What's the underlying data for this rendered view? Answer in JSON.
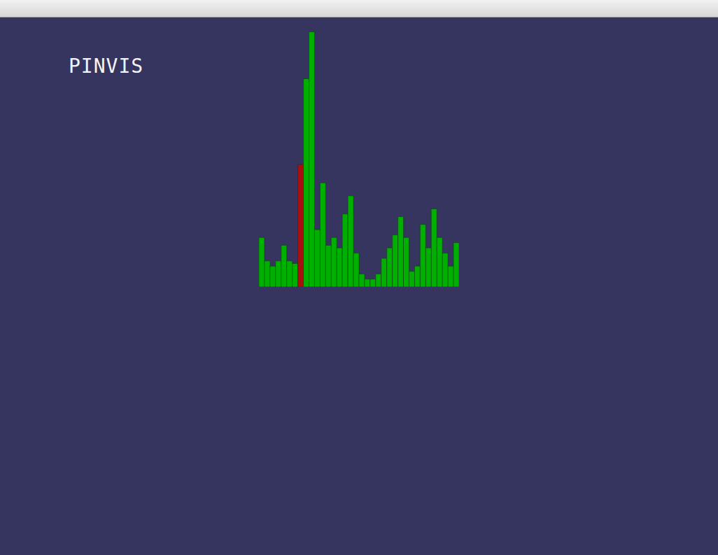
{
  "chart_data": {
    "type": "bar",
    "title": "PINVIS",
    "categories": [
      null,
      null,
      null,
      null,
      null,
      null,
      null,
      null,
      null,
      null,
      null,
      null,
      null,
      null,
      null,
      null,
      null,
      null,
      null,
      null,
      null,
      null,
      null,
      null,
      null,
      null,
      null,
      null,
      null,
      null,
      null,
      null,
      null,
      null,
      null,
      null
    ],
    "values": [
      19,
      10,
      8,
      10,
      16,
      10,
      9,
      47,
      80,
      98,
      22,
      40,
      16,
      19,
      15,
      28,
      35,
      13,
      5,
      3,
      3,
      5,
      11,
      15,
      20,
      27,
      19,
      6,
      8,
      24,
      15,
      30,
      19,
      13,
      8,
      17
    ],
    "colors": [
      "#00b000",
      "#00b000",
      "#00b000",
      "#00b000",
      "#00b000",
      "#00b000",
      "#00b000",
      "#a81010",
      "#00b000",
      "#00b000",
      "#00b000",
      "#00b000",
      "#00b000",
      "#00b000",
      "#00b000",
      "#00b000",
      "#00b000",
      "#00b000",
      "#00b000",
      "#00b000",
      "#00b000",
      "#00b000",
      "#00b000",
      "#00b000",
      "#00b000",
      "#00b000",
      "#00b000",
      "#00b000",
      "#00b000",
      "#00b000",
      "#00b000",
      "#00b000",
      "#00b000",
      "#00b000",
      "#00b000",
      "#00b000"
    ],
    "ylim": [
      0,
      100
    ],
    "yticks": [],
    "tick_labels": false
  }
}
